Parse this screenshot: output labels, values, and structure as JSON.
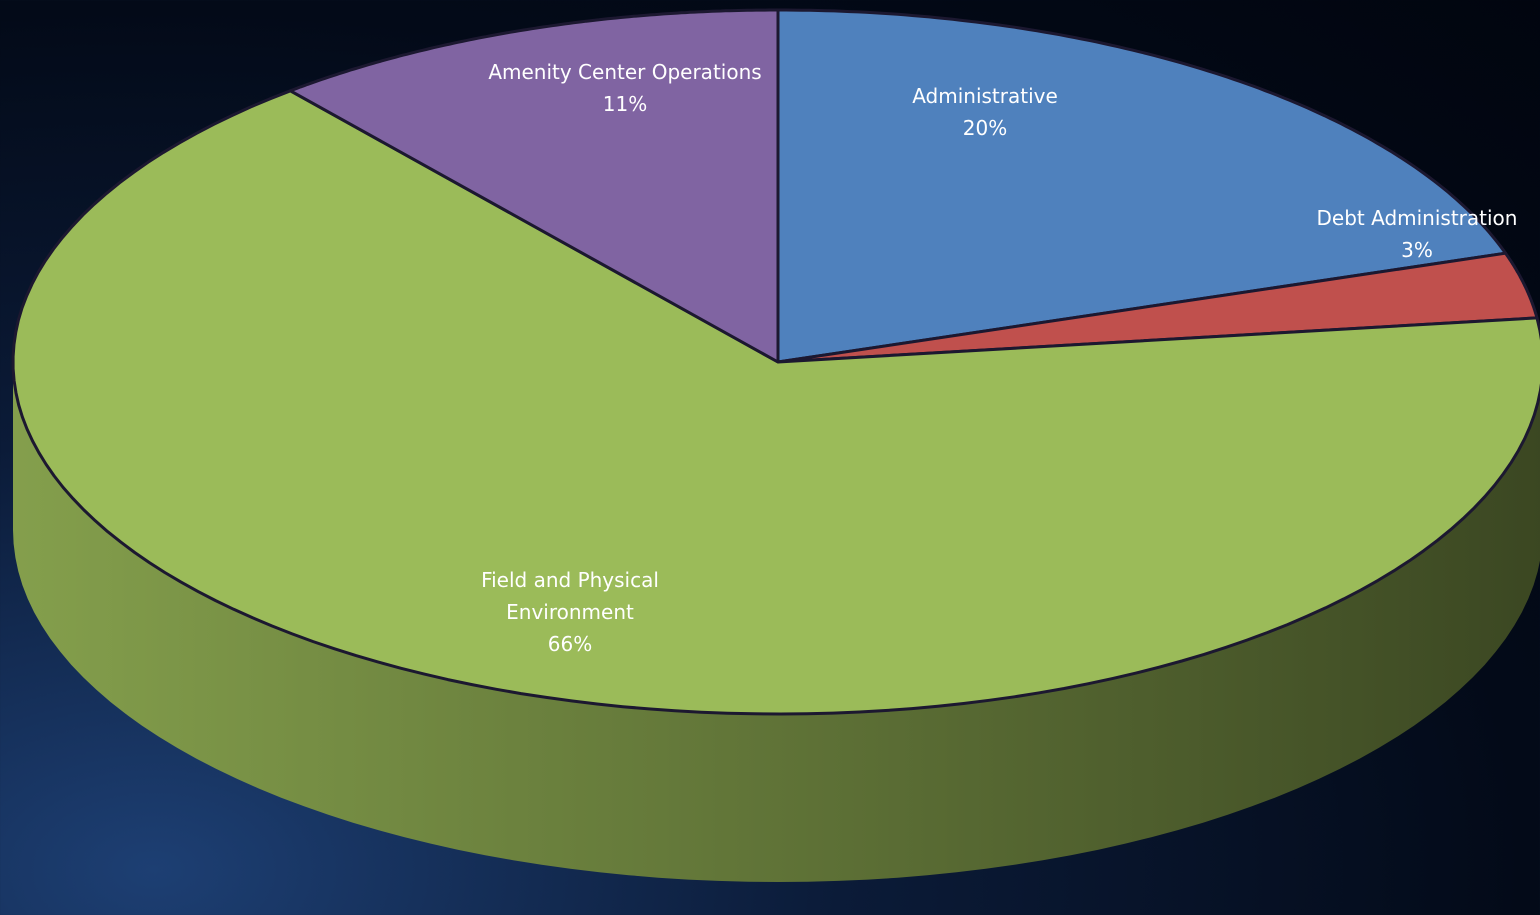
{
  "chart_data": {
    "type": "pie",
    "categories": [
      "Administrative",
      "Debt Administration",
      "Field and Physical Environment",
      "Amenity Center Operations"
    ],
    "values": [
      20,
      3,
      66,
      11
    ],
    "value_labels": [
      "20%",
      "3%",
      "66%",
      "11%"
    ],
    "colors": [
      "#4f81bd",
      "#c0504d",
      "#9bbb59",
      "#8064a2"
    ]
  }
}
